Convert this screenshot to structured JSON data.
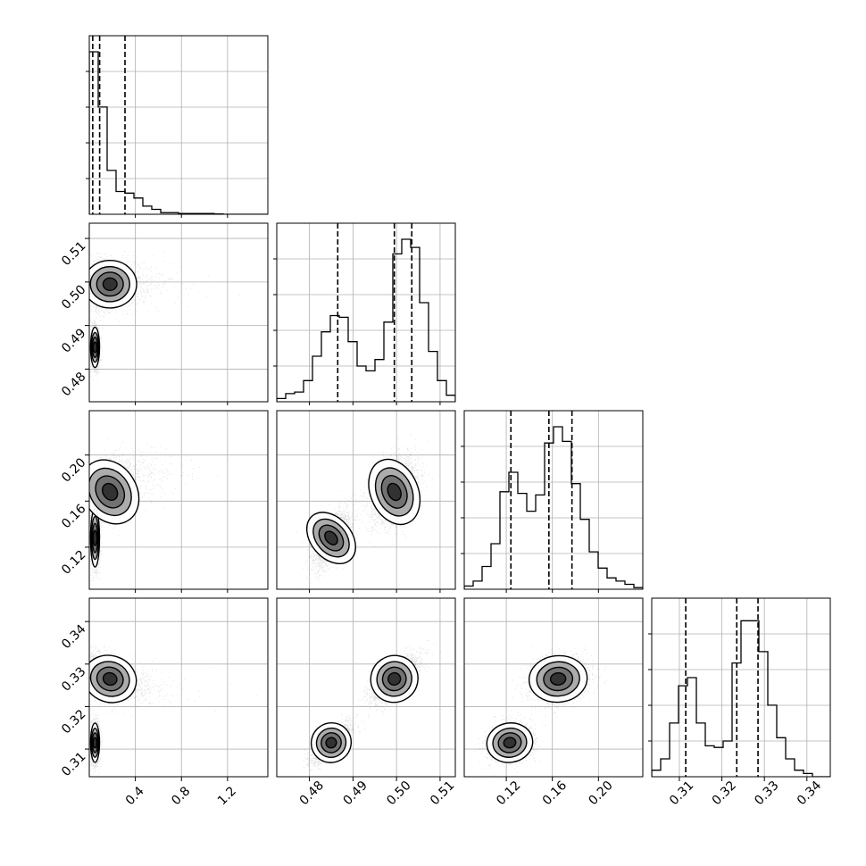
{
  "chart_data": {
    "type": "scatter",
    "title": "",
    "variables": [
      {
        "id": "v0",
        "range": [
          0.0,
          1.55
        ],
        "ticks": [
          0.4,
          0.8,
          1.2
        ],
        "tick_labels": [
          "0.4",
          "0.8",
          "1.2"
        ],
        "quantiles": [
          0.03,
          0.09,
          0.31
        ]
      },
      {
        "id": "v1",
        "range": [
          0.4725,
          0.5135
        ],
        "ticks": [
          0.48,
          0.49,
          0.5,
          0.51
        ],
        "tick_labels": [
          "0.48",
          "0.49",
          "0.50",
          "0.51"
        ],
        "quantiles": [
          0.4865,
          0.4995,
          0.5035
        ]
      },
      {
        "id": "v2",
        "range": [
          0.0835,
          0.2385
        ],
        "ticks": [
          0.12,
          0.16,
          0.2
        ],
        "tick_labels": [
          "0.12",
          "0.16",
          "0.20"
        ],
        "quantiles": [
          0.124,
          0.157,
          0.177
        ]
      },
      {
        "id": "v3",
        "range": [
          0.3035,
          0.3455
        ],
        "ticks": [
          0.31,
          0.32,
          0.33,
          0.34
        ],
        "tick_labels": [
          "0.31",
          "0.32",
          "0.33",
          "0.34"
        ],
        "quantiles": [
          0.3115,
          0.3235,
          0.3285
        ]
      }
    ],
    "histograms": [
      {
        "var": 0,
        "edges_range": [
          0.0,
          1.55
        ],
        "counts": [
          1.0,
          0.66,
          0.27,
          0.14,
          0.13,
          0.1,
          0.05,
          0.03,
          0.01,
          0.01,
          0.005,
          0.005,
          0.005,
          0.005,
          0.002,
          0.0,
          0.0,
          0.0,
          0.0,
          0.0
        ]
      },
      {
        "var": 1,
        "edges_range": [
          0.4725,
          0.5135
        ],
        "counts": [
          0.02,
          0.05,
          0.06,
          0.13,
          0.28,
          0.43,
          0.53,
          0.52,
          0.37,
          0.22,
          0.19,
          0.26,
          0.49,
          0.91,
          1.0,
          0.95,
          0.61,
          0.31,
          0.13,
          0.04
        ]
      },
      {
        "var": 2,
        "edges_range": [
          0.0835,
          0.2385
        ],
        "counts": [
          0.02,
          0.05,
          0.14,
          0.28,
          0.6,
          0.72,
          0.59,
          0.48,
          0.58,
          0.9,
          1.0,
          0.91,
          0.65,
          0.43,
          0.23,
          0.13,
          0.07,
          0.05,
          0.03,
          0.01
        ]
      },
      {
        "var": 3,
        "edges_range": [
          0.3035,
          0.3455
        ],
        "counts": [
          0.04,
          0.11,
          0.33,
          0.56,
          0.61,
          0.33,
          0.19,
          0.18,
          0.22,
          0.7,
          0.96,
          0.96,
          0.77,
          0.44,
          0.24,
          0.11,
          0.04,
          0.02,
          0.0,
          0.0
        ]
      }
    ],
    "joint_distributions": [
      {
        "x": 0,
        "y": 1,
        "modes": [
          {
            "cx": 0.05,
            "cy": 0.485,
            "sx": 0.018,
            "sy": 0.0022,
            "r": 0.0,
            "w": 0.45
          },
          {
            "cx": 0.18,
            "cy": 0.4995,
            "sx": 0.11,
            "sy": 0.0026,
            "r": 0.0,
            "w": 0.55
          }
        ]
      },
      {
        "x": 0,
        "y": 2,
        "modes": [
          {
            "cx": 0.05,
            "cy": 0.128,
            "sx": 0.018,
            "sy": 0.012,
            "r": 0.0,
            "w": 0.45
          },
          {
            "cx": 0.18,
            "cy": 0.168,
            "sx": 0.11,
            "sy": 0.014,
            "r": 0.5,
            "w": 0.55
          }
        ]
      },
      {
        "x": 0,
        "y": 3,
        "modes": [
          {
            "cx": 0.05,
            "cy": 0.3115,
            "sx": 0.018,
            "sy": 0.0022,
            "r": 0.0,
            "w": 0.45
          },
          {
            "cx": 0.18,
            "cy": 0.3265,
            "sx": 0.11,
            "sy": 0.0026,
            "r": -0.4,
            "w": 0.55
          }
        ]
      },
      {
        "x": 1,
        "y": 2,
        "modes": [
          {
            "cx": 0.485,
            "cy": 0.128,
            "sx": 0.0022,
            "sy": 0.012,
            "r": 0.6,
            "w": 0.45
          },
          {
            "cx": 0.4995,
            "cy": 0.168,
            "sx": 0.0026,
            "sy": 0.014,
            "r": 0.3,
            "w": 0.55
          }
        ]
      },
      {
        "x": 1,
        "y": 3,
        "modes": [
          {
            "cx": 0.485,
            "cy": 0.3115,
            "sx": 0.0022,
            "sy": 0.0022,
            "r": 0.75,
            "w": 0.45
          },
          {
            "cx": 0.4995,
            "cy": 0.3265,
            "sx": 0.0026,
            "sy": 0.0026,
            "r": 0.7,
            "w": 0.55
          }
        ]
      },
      {
        "x": 2,
        "y": 3,
        "modes": [
          {
            "cx": 0.123,
            "cy": 0.3115,
            "sx": 0.0095,
            "sy": 0.0022,
            "r": 0.2,
            "w": 0.45
          },
          {
            "cx": 0.165,
            "cy": 0.3265,
            "sx": 0.012,
            "sy": 0.0026,
            "r": 0.1,
            "w": 0.55
          }
        ]
      }
    ],
    "grid": true,
    "legend": "none"
  }
}
